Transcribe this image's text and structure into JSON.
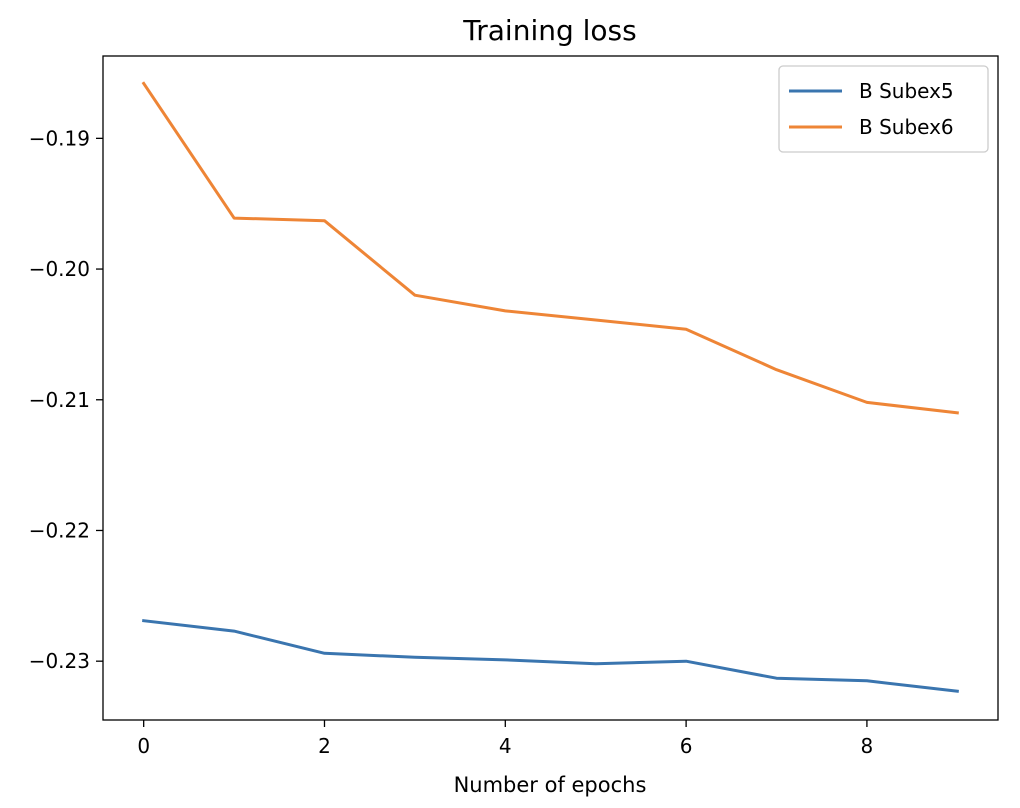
{
  "chart_data": {
    "type": "line",
    "title": "Training loss",
    "xlabel": "Number of epochs",
    "ylabel": "",
    "x": [
      0,
      1,
      2,
      3,
      4,
      5,
      6,
      7,
      8,
      9
    ],
    "xlim": [
      -0.45,
      9.45
    ],
    "ylim": [
      -0.2345,
      -0.1837
    ],
    "xticks": [
      0,
      2,
      4,
      6,
      8
    ],
    "yticks": [
      -0.19,
      -0.2,
      -0.21,
      -0.22,
      -0.23
    ],
    "xtick_labels": [
      "0",
      "2",
      "4",
      "6",
      "8"
    ],
    "ytick_labels": [
      "−0.19",
      "−0.20",
      "−0.21",
      "−0.22",
      "−0.23"
    ],
    "grid": false,
    "legend": "upper right",
    "series": [
      {
        "name": "B Subex5",
        "color": "#3a75af",
        "values": [
          -0.2269,
          -0.2277,
          -0.2294,
          -0.2297,
          -0.2299,
          -0.2302,
          -0.23,
          -0.2313,
          -0.2315,
          -0.2323
        ]
      },
      {
        "name": "B Subex6",
        "color": "#ee8536",
        "values": [
          -0.1858,
          -0.1961,
          -0.1963,
          -0.202,
          -0.2032,
          -0.2039,
          -0.2046,
          -0.2077,
          -0.2102,
          -0.211
        ]
      }
    ]
  }
}
